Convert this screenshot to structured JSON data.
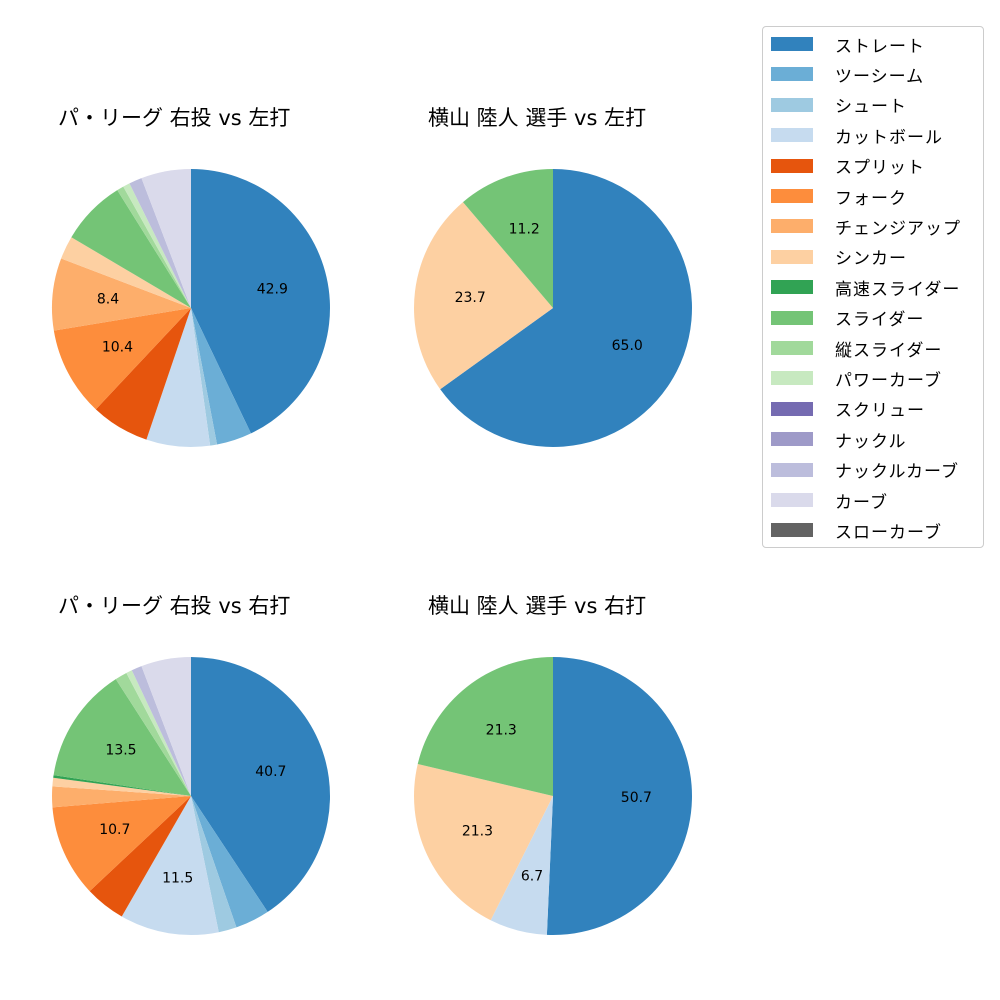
{
  "colors": {
    "ストレート": "#3182bd",
    "ツーシーム": "#6baed6",
    "シュート": "#9ecae1",
    "カットボール": "#c6dbef",
    "スプリット": "#e6550d",
    "フォーク": "#fd8d3c",
    "チェンジアップ": "#fdae6b",
    "シンカー": "#fdd0a2",
    "高速スライダー": "#31a354",
    "スライダー": "#74c476",
    "縦スライダー": "#a1d99b",
    "パワーカーブ": "#c7e9c0",
    "スクリュー": "#756bb1",
    "ナックル": "#9e9ac8",
    "ナックルカーブ": "#bcbddc",
    "カーブ": "#dadaeb",
    "スローカーブ": "#636363"
  },
  "legend": {
    "items": [
      {
        "label": "ストレート",
        "color": "#3182bd"
      },
      {
        "label": "ツーシーム",
        "color": "#6baed6"
      },
      {
        "label": "シュート",
        "color": "#9ecae1"
      },
      {
        "label": "カットボール",
        "color": "#c6dbef"
      },
      {
        "label": "スプリット",
        "color": "#e6550d"
      },
      {
        "label": "フォーク",
        "color": "#fd8d3c"
      },
      {
        "label": "チェンジアップ",
        "color": "#fdae6b"
      },
      {
        "label": "シンカー",
        "color": "#fdd0a2"
      },
      {
        "label": "高速スライダー",
        "color": "#31a354"
      },
      {
        "label": "スライダー",
        "color": "#74c476"
      },
      {
        "label": "縦スライダー",
        "color": "#a1d99b"
      },
      {
        "label": "パワーカーブ",
        "color": "#c7e9c0"
      },
      {
        "label": "スクリュー",
        "color": "#756bb1"
      },
      {
        "label": "ナックル",
        "color": "#9e9ac8"
      },
      {
        "label": "ナックルカーブ",
        "color": "#bcbddc"
      },
      {
        "label": "カーブ",
        "color": "#dadaeb"
      },
      {
        "label": "スローカーブ",
        "color": "#636363"
      }
    ]
  },
  "chart_data": [
    {
      "type": "pie",
      "title": "パ・リーグ 右投 vs 左打",
      "start_angle": 90,
      "direction": "clockwise",
      "slices": [
        {
          "label": "ストレート",
          "value": 42.9,
          "shown": "42.9"
        },
        {
          "label": "ツーシーム",
          "value": 4.1
        },
        {
          "label": "シュート",
          "value": 0.8
        },
        {
          "label": "カットボール",
          "value": 7.4
        },
        {
          "label": "スプリット",
          "value": 6.8
        },
        {
          "label": "フォーク",
          "value": 10.4,
          "shown": "10.4"
        },
        {
          "label": "チェンジアップ",
          "value": 8.4,
          "shown": "8.4"
        },
        {
          "label": "シンカー",
          "value": 2.7
        },
        {
          "label": "スライダー",
          "value": 7.6
        },
        {
          "label": "縦スライダー",
          "value": 0.8
        },
        {
          "label": "パワーカーブ",
          "value": 0.8
        },
        {
          "label": "ナックルカーブ",
          "value": 1.5
        },
        {
          "label": "カーブ",
          "value": 5.8
        }
      ]
    },
    {
      "type": "pie",
      "title": "横山 陸人 選手 vs 左打",
      "start_angle": 90,
      "direction": "clockwise",
      "slices": [
        {
          "label": "ストレート",
          "value": 65.0,
          "shown": "65.0"
        },
        {
          "label": "シンカー",
          "value": 23.7,
          "shown": "23.7"
        },
        {
          "label": "スライダー",
          "value": 11.2,
          "shown": "11.2"
        }
      ]
    },
    {
      "type": "pie",
      "title": "パ・リーグ 右投 vs 右打",
      "start_angle": 90,
      "direction": "clockwise",
      "slices": [
        {
          "label": "ストレート",
          "value": 40.7,
          "shown": "40.7"
        },
        {
          "label": "ツーシーム",
          "value": 4.0
        },
        {
          "label": "シュート",
          "value": 2.1
        },
        {
          "label": "カットボール",
          "value": 11.5,
          "shown": "11.5"
        },
        {
          "label": "スプリット",
          "value": 4.7
        },
        {
          "label": "フォーク",
          "value": 10.7,
          "shown": "10.7"
        },
        {
          "label": "チェンジアップ",
          "value": 2.4
        },
        {
          "label": "シンカー",
          "value": 1.0
        },
        {
          "label": "高速スライダー",
          "value": 0.3
        },
        {
          "label": "スライダー",
          "value": 13.5,
          "shown": "13.5"
        },
        {
          "label": "縦スライダー",
          "value": 1.4
        },
        {
          "label": "パワーカーブ",
          "value": 0.7
        },
        {
          "label": "ナックルカーブ",
          "value": 1.2
        },
        {
          "label": "カーブ",
          "value": 5.8
        }
      ]
    },
    {
      "type": "pie",
      "title": "横山 陸人 選手 vs 右打",
      "start_angle": 90,
      "direction": "clockwise",
      "slices": [
        {
          "label": "ストレート",
          "value": 50.7,
          "shown": "50.7"
        },
        {
          "label": "カットボール",
          "value": 6.7,
          "shown": "6.7"
        },
        {
          "label": "シンカー",
          "value": 21.3,
          "shown": "21.3"
        },
        {
          "label": "スライダー",
          "value": 21.3,
          "shown": "21.3"
        }
      ]
    }
  ]
}
